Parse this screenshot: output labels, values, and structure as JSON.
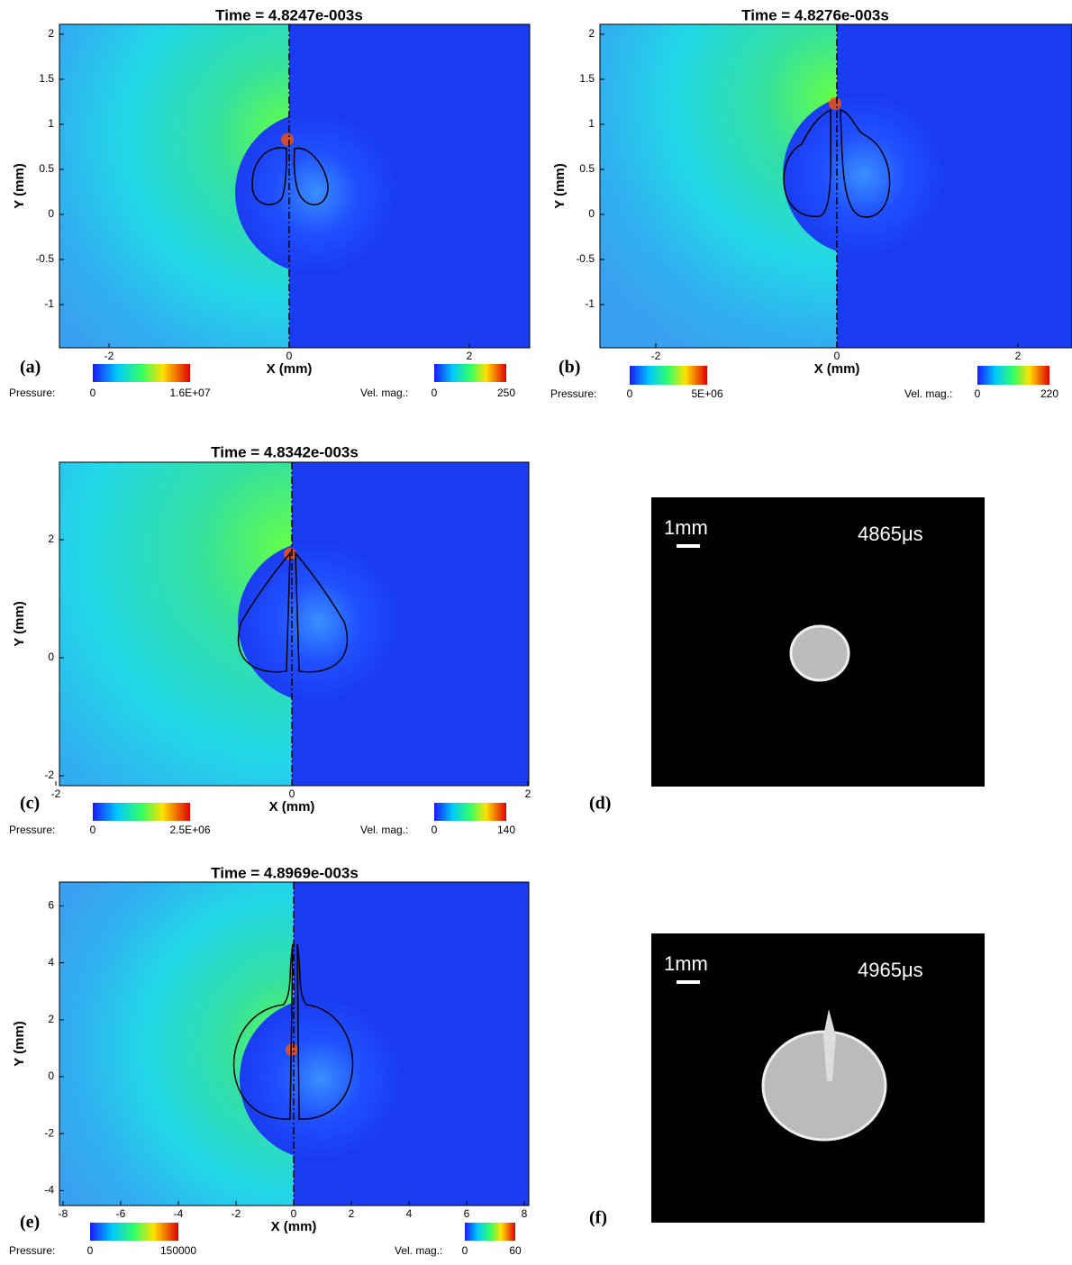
{
  "panels": [
    {
      "label": "(a)",
      "title": "Time = 4.8247e-003s",
      "x_label": "X (mm)",
      "y_label": "Y (mm)",
      "x_ticks": [
        -2,
        0,
        2
      ],
      "y_ticks": [
        2,
        1.5,
        1,
        0.5,
        0,
        -0.5,
        -1
      ],
      "colorbars": [
        {
          "name": "Pressure:",
          "min": 0,
          "max": "1.6E+07"
        },
        {
          "name": "Vel. mag.:",
          "min": 0,
          "max": 250
        }
      ]
    },
    {
      "label": "(b)",
      "title": "Time = 4.8276e-003s",
      "x_label": "X (mm)",
      "y_label": "Y (mm)",
      "x_ticks": [
        -2,
        0,
        2
      ],
      "y_ticks": [
        2,
        1.5,
        1,
        0.5,
        0,
        -0.5,
        -1
      ],
      "colorbars": [
        {
          "name": "Pressure:",
          "min": 0,
          "max": "5E+06"
        },
        {
          "name": "Vel. mag.:",
          "min": 0,
          "max": 220
        }
      ]
    },
    {
      "label": "(c)",
      "title": "Time = 4.8342e-003s",
      "x_label": "X (mm)",
      "y_label": "Y (mm)",
      "x_ticks": [
        -2,
        0,
        2
      ],
      "y_ticks": [
        2,
        0,
        -2
      ],
      "colorbars": [
        {
          "name": "Pressure:",
          "min": 0,
          "max": "2.5E+06"
        },
        {
          "name": "Vel. mag.:",
          "min": 0,
          "max": 140
        }
      ]
    },
    {
      "label": "(e)",
      "title": "Time = 4.8969e-003s",
      "x_label": "X (mm)",
      "y_label": "Y (mm)",
      "x_ticks": [
        -8,
        -6,
        -4,
        -2,
        0,
        2,
        4,
        6,
        8
      ],
      "y_ticks": [
        6,
        4,
        2,
        0,
        -2,
        -4
      ],
      "colorbars": [
        {
          "name": "Pressure:",
          "min": 0,
          "max": 150000
        },
        {
          "name": "Vel. mag.:",
          "min": 0,
          "max": 60
        }
      ]
    }
  ],
  "photos": [
    {
      "label": "(d)",
      "scale": "1mm",
      "time": "4865μs"
    },
    {
      "label": "(f)",
      "scale": "1mm",
      "time": "4965μs"
    }
  ]
}
